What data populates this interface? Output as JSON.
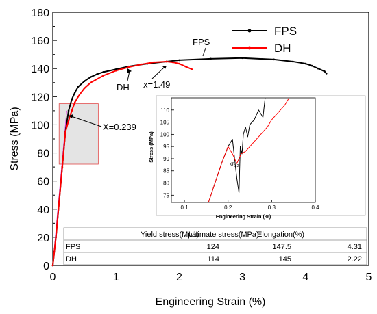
{
  "chart_data": [
    {
      "type": "line",
      "xlabel": "Engineering Strain (%)",
      "ylabel": "Stress (MPa)",
      "xlim": [
        0,
        5
      ],
      "ylim": [
        0,
        180
      ],
      "xticks": [
        0,
        1,
        2,
        3,
        4,
        5
      ],
      "yticks": [
        0,
        20,
        40,
        60,
        80,
        100,
        120,
        140,
        160,
        180
      ],
      "grid": false,
      "legend": "top-right",
      "series": [
        {
          "name": "FPS",
          "color": "#000000",
          "x": [
            0,
            0.05,
            0.1,
            0.15,
            0.2,
            0.25,
            0.3,
            0.35,
            0.4,
            0.5,
            0.6,
            0.7,
            0.8,
            1.0,
            1.2,
            1.5,
            1.8,
            2.0,
            2.5,
            3.0,
            3.5,
            3.8,
            4.0,
            4.1,
            4.2,
            4.3,
            4.33
          ],
          "y": [
            0,
            20,
            45,
            70,
            95,
            110,
            118,
            123,
            127,
            131,
            134,
            136,
            137.5,
            139.5,
            141.5,
            143.5,
            145,
            146,
            147,
            147.5,
            146.5,
            145,
            143.5,
            142,
            140,
            138,
            136.5
          ]
        },
        {
          "name": "DH",
          "color": "#ff0000",
          "x": [
            0,
            0.05,
            0.1,
            0.15,
            0.2,
            0.25,
            0.3,
            0.35,
            0.4,
            0.5,
            0.6,
            0.8,
            1.0,
            1.2,
            1.4,
            1.6,
            1.8,
            1.9,
            2.0,
            2.1,
            2.2
          ],
          "y": [
            0,
            20,
            45,
            70,
            95,
            103,
            110,
            116,
            120,
            126,
            130,
            135,
            138.5,
            141,
            143,
            144.5,
            145,
            144.5,
            143.5,
            141.5,
            139.5
          ]
        }
      ],
      "annotations": [
        "FPS",
        "DH",
        "x=1.49",
        "X=0.239"
      ],
      "shaded_region": {
        "x": [
          0.1,
          0.72
        ],
        "y": [
          72,
          115
        ]
      }
    },
    {
      "type": "line",
      "xlabel": "Engineering Strain (%)",
      "ylabel": "Stress (MPa)",
      "xlim": [
        0.07,
        0.4
      ],
      "ylim": [
        72,
        115
      ],
      "xticks": [
        0.1,
        0.2,
        0.3,
        0.4
      ],
      "yticks": [
        75,
        80,
        85,
        90,
        95,
        100,
        105,
        110
      ],
      "annotation_sigma": "σ",
      "annotation_sub": "0.2",
      "series": [
        {
          "name": "FPS",
          "color": "#000000",
          "x": [
            0.155,
            0.17,
            0.185,
            0.2,
            0.21,
            0.215,
            0.22,
            0.225,
            0.228,
            0.232,
            0.235,
            0.24,
            0.245,
            0.25,
            0.26,
            0.27,
            0.28,
            0.285
          ],
          "y": [
            72,
            80,
            88,
            95,
            98,
            90,
            82,
            76,
            95,
            92,
            100,
            103,
            99,
            104,
            106,
            110,
            107,
            115
          ]
        },
        {
          "name": "DH",
          "color": "#ff0000",
          "x": [
            0.155,
            0.17,
            0.185,
            0.2,
            0.21,
            0.22,
            0.23,
            0.24,
            0.25,
            0.26,
            0.27,
            0.28,
            0.29,
            0.3,
            0.31,
            0.32,
            0.33,
            0.34
          ],
          "y": [
            72,
            80,
            88,
            95,
            92,
            88,
            92,
            93,
            95,
            97,
            99,
            101,
            103,
            106,
            108,
            110,
            112,
            115
          ]
        }
      ]
    },
    {
      "type": "table",
      "columns": [
        "",
        "Yield stress(Mpa)",
        "Ultimate stress(MPa)",
        "Elongation(%)"
      ],
      "rows": [
        [
          "FPS",
          "124",
          "147.5",
          "4.31"
        ],
        [
          "DH",
          "114",
          "145",
          "2.22"
        ]
      ]
    }
  ]
}
